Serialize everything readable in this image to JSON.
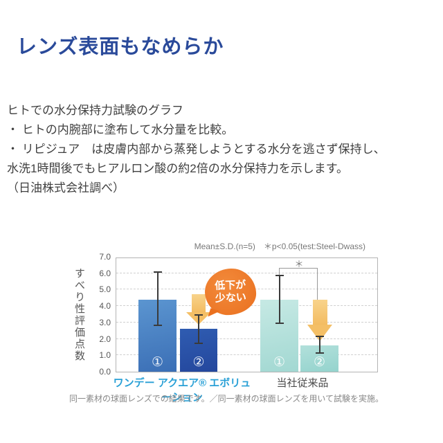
{
  "page": {
    "title": "レンズ表面もなめらか",
    "intro_lines": [
      "ヒトでの水分保持力試験のグラフ",
      "・ ヒトの内腕部に塗布して水分量を比較。",
      "・ リピジュア　は皮膚内部から蒸発しようとする水分を逃さず保持し、",
      "水洗1時間後でもヒアルロン酸の約2倍の水分保持力を示します。",
      "（日油株式会社調べ）"
    ]
  },
  "chart_data": {
    "type": "bar",
    "annotation": "Mean±S.D.(n=5)　＊p<0.05(test:Steel-Dwass)",
    "ylabel": "すべり性評価点数",
    "ylim": [
      0,
      7
    ],
    "yticks": [
      "7.0",
      "6.0",
      "5.0",
      "4.0",
      "3.0",
      "2.0",
      "1.0",
      "0.0"
    ],
    "grid": "horizontal-dashed",
    "groups": [
      {
        "label": "ワンデー アクエア® エボリューション",
        "label_color": "#29a0d6",
        "bars": [
          {
            "tag": "①",
            "value": 4.4,
            "err_low": 2.8,
            "err_high": 6.1,
            "color_top": "#5b95d0",
            "color_bottom": "#3b6fb6"
          },
          {
            "tag": "②",
            "value": 2.6,
            "err_low": 1.7,
            "err_high": 3.5,
            "color_top": "#2f5cb1",
            "color_bottom": "#24479d"
          }
        ]
      },
      {
        "label": "当社従来品",
        "label_color": "#4a4a4a",
        "bars": [
          {
            "tag": "①",
            "value": 4.4,
            "err_low": 2.9,
            "err_high": 5.9,
            "color_top": "#c6e9e4",
            "color_bottom": "#a2d8d2"
          },
          {
            "tag": "②",
            "value": 1.6,
            "err_low": 1.1,
            "err_high": 2.2,
            "color_top": "#b2e0db",
            "color_bottom": "#94d3cd"
          }
        ]
      }
    ],
    "callout": {
      "lines": [
        "低下が",
        "少ない"
      ],
      "color": "#ea701f"
    },
    "sig_marker": "＊",
    "arrow_color": "#f4bf66",
    "footnote": "同一素材の球面レンズでの結果です。／同一素材の球面レンズを用いて試験を実施。"
  }
}
